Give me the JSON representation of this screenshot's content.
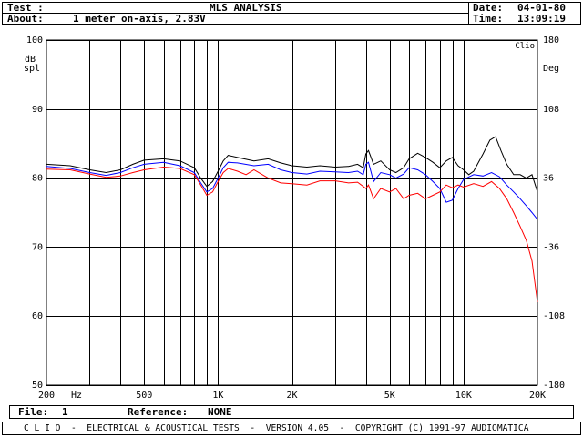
{
  "header": {
    "test_label": "Test :",
    "title": "MLS ANALYSIS",
    "about_label": "About:",
    "about_value": "1 meter on-axis, 2.83V",
    "date_label": "Date:",
    "date_value": "04-01-80",
    "time_label": "Time:",
    "time_value": "13:09:19"
  },
  "footer": {
    "file_label": "File:",
    "file_value": "1",
    "reference_label": "Reference:",
    "reference_value": "NONE",
    "banner": "C L I O  -  ELECTRICAL & ACOUSTICAL TESTS  -  VERSION 4.05  -  COPYRIGHT (C) 1991-97 AUDIOMATICA"
  },
  "chart_data": {
    "type": "line",
    "ylabel_unit": "dB",
    "ylabel_ref": "spl",
    "y2label": "Deg",
    "brand": "Clio",
    "xlabel": "Hz",
    "xscale": "log",
    "xlim": [
      200,
      20000
    ],
    "ylim": [
      50,
      100
    ],
    "y2lim": [
      -180,
      180
    ],
    "yticks": [
      50,
      60,
      70,
      80,
      90,
      100
    ],
    "y2ticks": [
      -180,
      -108,
      -36,
      36,
      108,
      180
    ],
    "xtick_labels": [
      {
        "value": 200,
        "label": "200"
      },
      {
        "value": 500,
        "label": "500"
      },
      {
        "value": 1000,
        "label": "1K"
      },
      {
        "value": 2000,
        "label": "2K"
      },
      {
        "value": 5000,
        "label": "5K"
      },
      {
        "value": 10000,
        "label": "10K"
      },
      {
        "value": 20000,
        "label": "20K"
      }
    ],
    "grid_x": [
      300,
      400,
      500,
      600,
      700,
      800,
      900,
      1000,
      2000,
      3000,
      4000,
      5000,
      6000,
      7000,
      8000,
      9000,
      10000
    ],
    "grid": true,
    "series": [
      {
        "color": "#000000",
        "points": [
          [
            200,
            82
          ],
          [
            250,
            81.8
          ],
          [
            300,
            81.2
          ],
          [
            350,
            80.8
          ],
          [
            400,
            81.2
          ],
          [
            450,
            82
          ],
          [
            500,
            82.6
          ],
          [
            600,
            82.8
          ],
          [
            700,
            82.5
          ],
          [
            800,
            81.5
          ],
          [
            850,
            80
          ],
          [
            900,
            78.8
          ],
          [
            950,
            79.5
          ],
          [
            1000,
            81
          ],
          [
            1050,
            82.5
          ],
          [
            1100,
            83.3
          ],
          [
            1200,
            83
          ],
          [
            1400,
            82.5
          ],
          [
            1600,
            82.8
          ],
          [
            1800,
            82.2
          ],
          [
            2000,
            81.8
          ],
          [
            2300,
            81.6
          ],
          [
            2600,
            81.8
          ],
          [
            3000,
            81.6
          ],
          [
            3400,
            81.7
          ],
          [
            3700,
            82
          ],
          [
            3900,
            81.5
          ],
          [
            4000,
            83.5
          ],
          [
            4100,
            84
          ],
          [
            4300,
            82
          ],
          [
            4600,
            82.5
          ],
          [
            5000,
            81.2
          ],
          [
            5300,
            80.8
          ],
          [
            5700,
            81.5
          ],
          [
            6000,
            82.8
          ],
          [
            6500,
            83.6
          ],
          [
            7000,
            83
          ],
          [
            7500,
            82.3
          ],
          [
            8000,
            81.5
          ],
          [
            8500,
            82.5
          ],
          [
            9000,
            83
          ],
          [
            9500,
            81.8
          ],
          [
            10000,
            81.2
          ],
          [
            10500,
            80.5
          ],
          [
            11000,
            81
          ],
          [
            12000,
            83.5
          ],
          [
            12800,
            85.5
          ],
          [
            13500,
            86
          ],
          [
            14200,
            84
          ],
          [
            15000,
            82
          ],
          [
            16000,
            80.5
          ],
          [
            17000,
            80.5
          ],
          [
            18000,
            80
          ],
          [
            19000,
            80.5
          ],
          [
            20000,
            78
          ]
        ]
      },
      {
        "color": "#0000ff",
        "points": [
          [
            200,
            81.7
          ],
          [
            250,
            81.4
          ],
          [
            300,
            80.8
          ],
          [
            350,
            80.4
          ],
          [
            400,
            80.8
          ],
          [
            450,
            81.5
          ],
          [
            500,
            82
          ],
          [
            600,
            82.3
          ],
          [
            700,
            81.8
          ],
          [
            800,
            80.8
          ],
          [
            850,
            79.3
          ],
          [
            900,
            78
          ],
          [
            950,
            78.5
          ],
          [
            1000,
            80
          ],
          [
            1050,
            81.5
          ],
          [
            1100,
            82.3
          ],
          [
            1200,
            82.2
          ],
          [
            1400,
            81.8
          ],
          [
            1600,
            82
          ],
          [
            1800,
            81.2
          ],
          [
            2000,
            80.8
          ],
          [
            2300,
            80.6
          ],
          [
            2600,
            81
          ],
          [
            3000,
            80.9
          ],
          [
            3400,
            80.8
          ],
          [
            3700,
            81
          ],
          [
            3900,
            80.5
          ],
          [
            4000,
            82
          ],
          [
            4100,
            82.3
          ],
          [
            4300,
            79.5
          ],
          [
            4600,
            80.8
          ],
          [
            5000,
            80.5
          ],
          [
            5300,
            80
          ],
          [
            5700,
            80.6
          ],
          [
            6000,
            81.5
          ],
          [
            6500,
            81.2
          ],
          [
            7000,
            80.5
          ],
          [
            7500,
            79.5
          ],
          [
            8000,
            78.5
          ],
          [
            8500,
            76.5
          ],
          [
            9000,
            76.8
          ],
          [
            9500,
            78.5
          ],
          [
            10000,
            79.8
          ],
          [
            11000,
            80.5
          ],
          [
            12000,
            80.3
          ],
          [
            13000,
            80.8
          ],
          [
            14000,
            80.2
          ],
          [
            15000,
            79
          ],
          [
            16000,
            78
          ],
          [
            17000,
            77
          ],
          [
            18000,
            76
          ],
          [
            19000,
            75
          ],
          [
            20000,
            74
          ]
        ]
      },
      {
        "color": "#ff0000",
        "points": [
          [
            200,
            81.3
          ],
          [
            250,
            81.2
          ],
          [
            300,
            80.6
          ],
          [
            350,
            80.1
          ],
          [
            400,
            80.3
          ],
          [
            450,
            80.8
          ],
          [
            500,
            81.2
          ],
          [
            600,
            81.6
          ],
          [
            700,
            81.4
          ],
          [
            800,
            80.5
          ],
          [
            850,
            79
          ],
          [
            900,
            77.5
          ],
          [
            950,
            78
          ],
          [
            1000,
            79.5
          ],
          [
            1050,
            80.8
          ],
          [
            1100,
            81.4
          ],
          [
            1200,
            81
          ],
          [
            1300,
            80.5
          ],
          [
            1400,
            81.2
          ],
          [
            1600,
            80
          ],
          [
            1800,
            79.3
          ],
          [
            2000,
            79.2
          ],
          [
            2300,
            79
          ],
          [
            2600,
            79.6
          ],
          [
            3000,
            79.6
          ],
          [
            3400,
            79.3
          ],
          [
            3700,
            79.4
          ],
          [
            3900,
            78.8
          ],
          [
            4000,
            78.5
          ],
          [
            4100,
            79
          ],
          [
            4300,
            77
          ],
          [
            4600,
            78.5
          ],
          [
            5000,
            78
          ],
          [
            5300,
            78.5
          ],
          [
            5700,
            77
          ],
          [
            6000,
            77.5
          ],
          [
            6500,
            77.8
          ],
          [
            7000,
            77
          ],
          [
            7500,
            77.5
          ],
          [
            8000,
            78
          ],
          [
            8500,
            79
          ],
          [
            9000,
            78.6
          ],
          [
            9500,
            79
          ],
          [
            10000,
            78.7
          ],
          [
            11000,
            79.2
          ],
          [
            12000,
            78.8
          ],
          [
            13000,
            79.5
          ],
          [
            14000,
            78.5
          ],
          [
            15000,
            77
          ],
          [
            16000,
            75
          ],
          [
            17000,
            73
          ],
          [
            18000,
            71
          ],
          [
            19000,
            68
          ],
          [
            19500,
            65
          ],
          [
            20000,
            62
          ]
        ]
      }
    ]
  }
}
